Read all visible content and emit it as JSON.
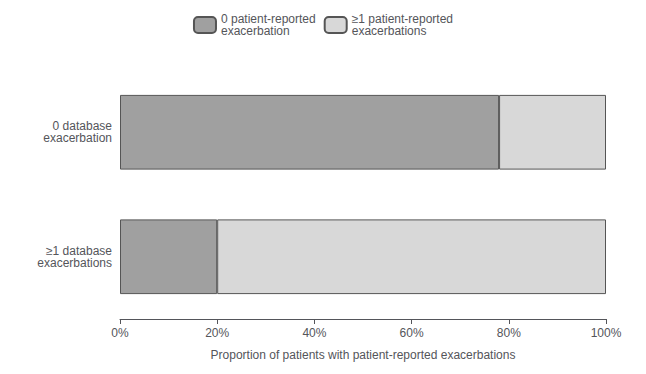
{
  "chart_data": {
    "type": "bar",
    "orientation": "horizontal",
    "stacked": true,
    "categories": [
      "0 database\nexacerbation",
      "≥1 database\nexacerbations"
    ],
    "series": [
      {
        "name": "0 patient-reported\nexacerbation",
        "color": "#a0a0a0",
        "values": [
          0.78,
          0.2
        ]
      },
      {
        "name": "≥1 patient-reported\nexacerbations",
        "color": "#d8d8d8",
        "values": [
          0.22,
          0.8
        ]
      }
    ],
    "xlabel": "Proportion of patients with patient-reported exacerbations",
    "xlim": [
      0,
      1
    ],
    "xticks": [
      {
        "value": 0,
        "label": "0%"
      },
      {
        "value": 0.2,
        "label": "20%"
      },
      {
        "value": 0.4,
        "label": "40%"
      },
      {
        "value": 0.6,
        "label": "60%"
      },
      {
        "value": 0.8,
        "label": "80%"
      },
      {
        "value": 1.0,
        "label": "100%"
      }
    ],
    "grid": false,
    "legend": "upper center"
  }
}
